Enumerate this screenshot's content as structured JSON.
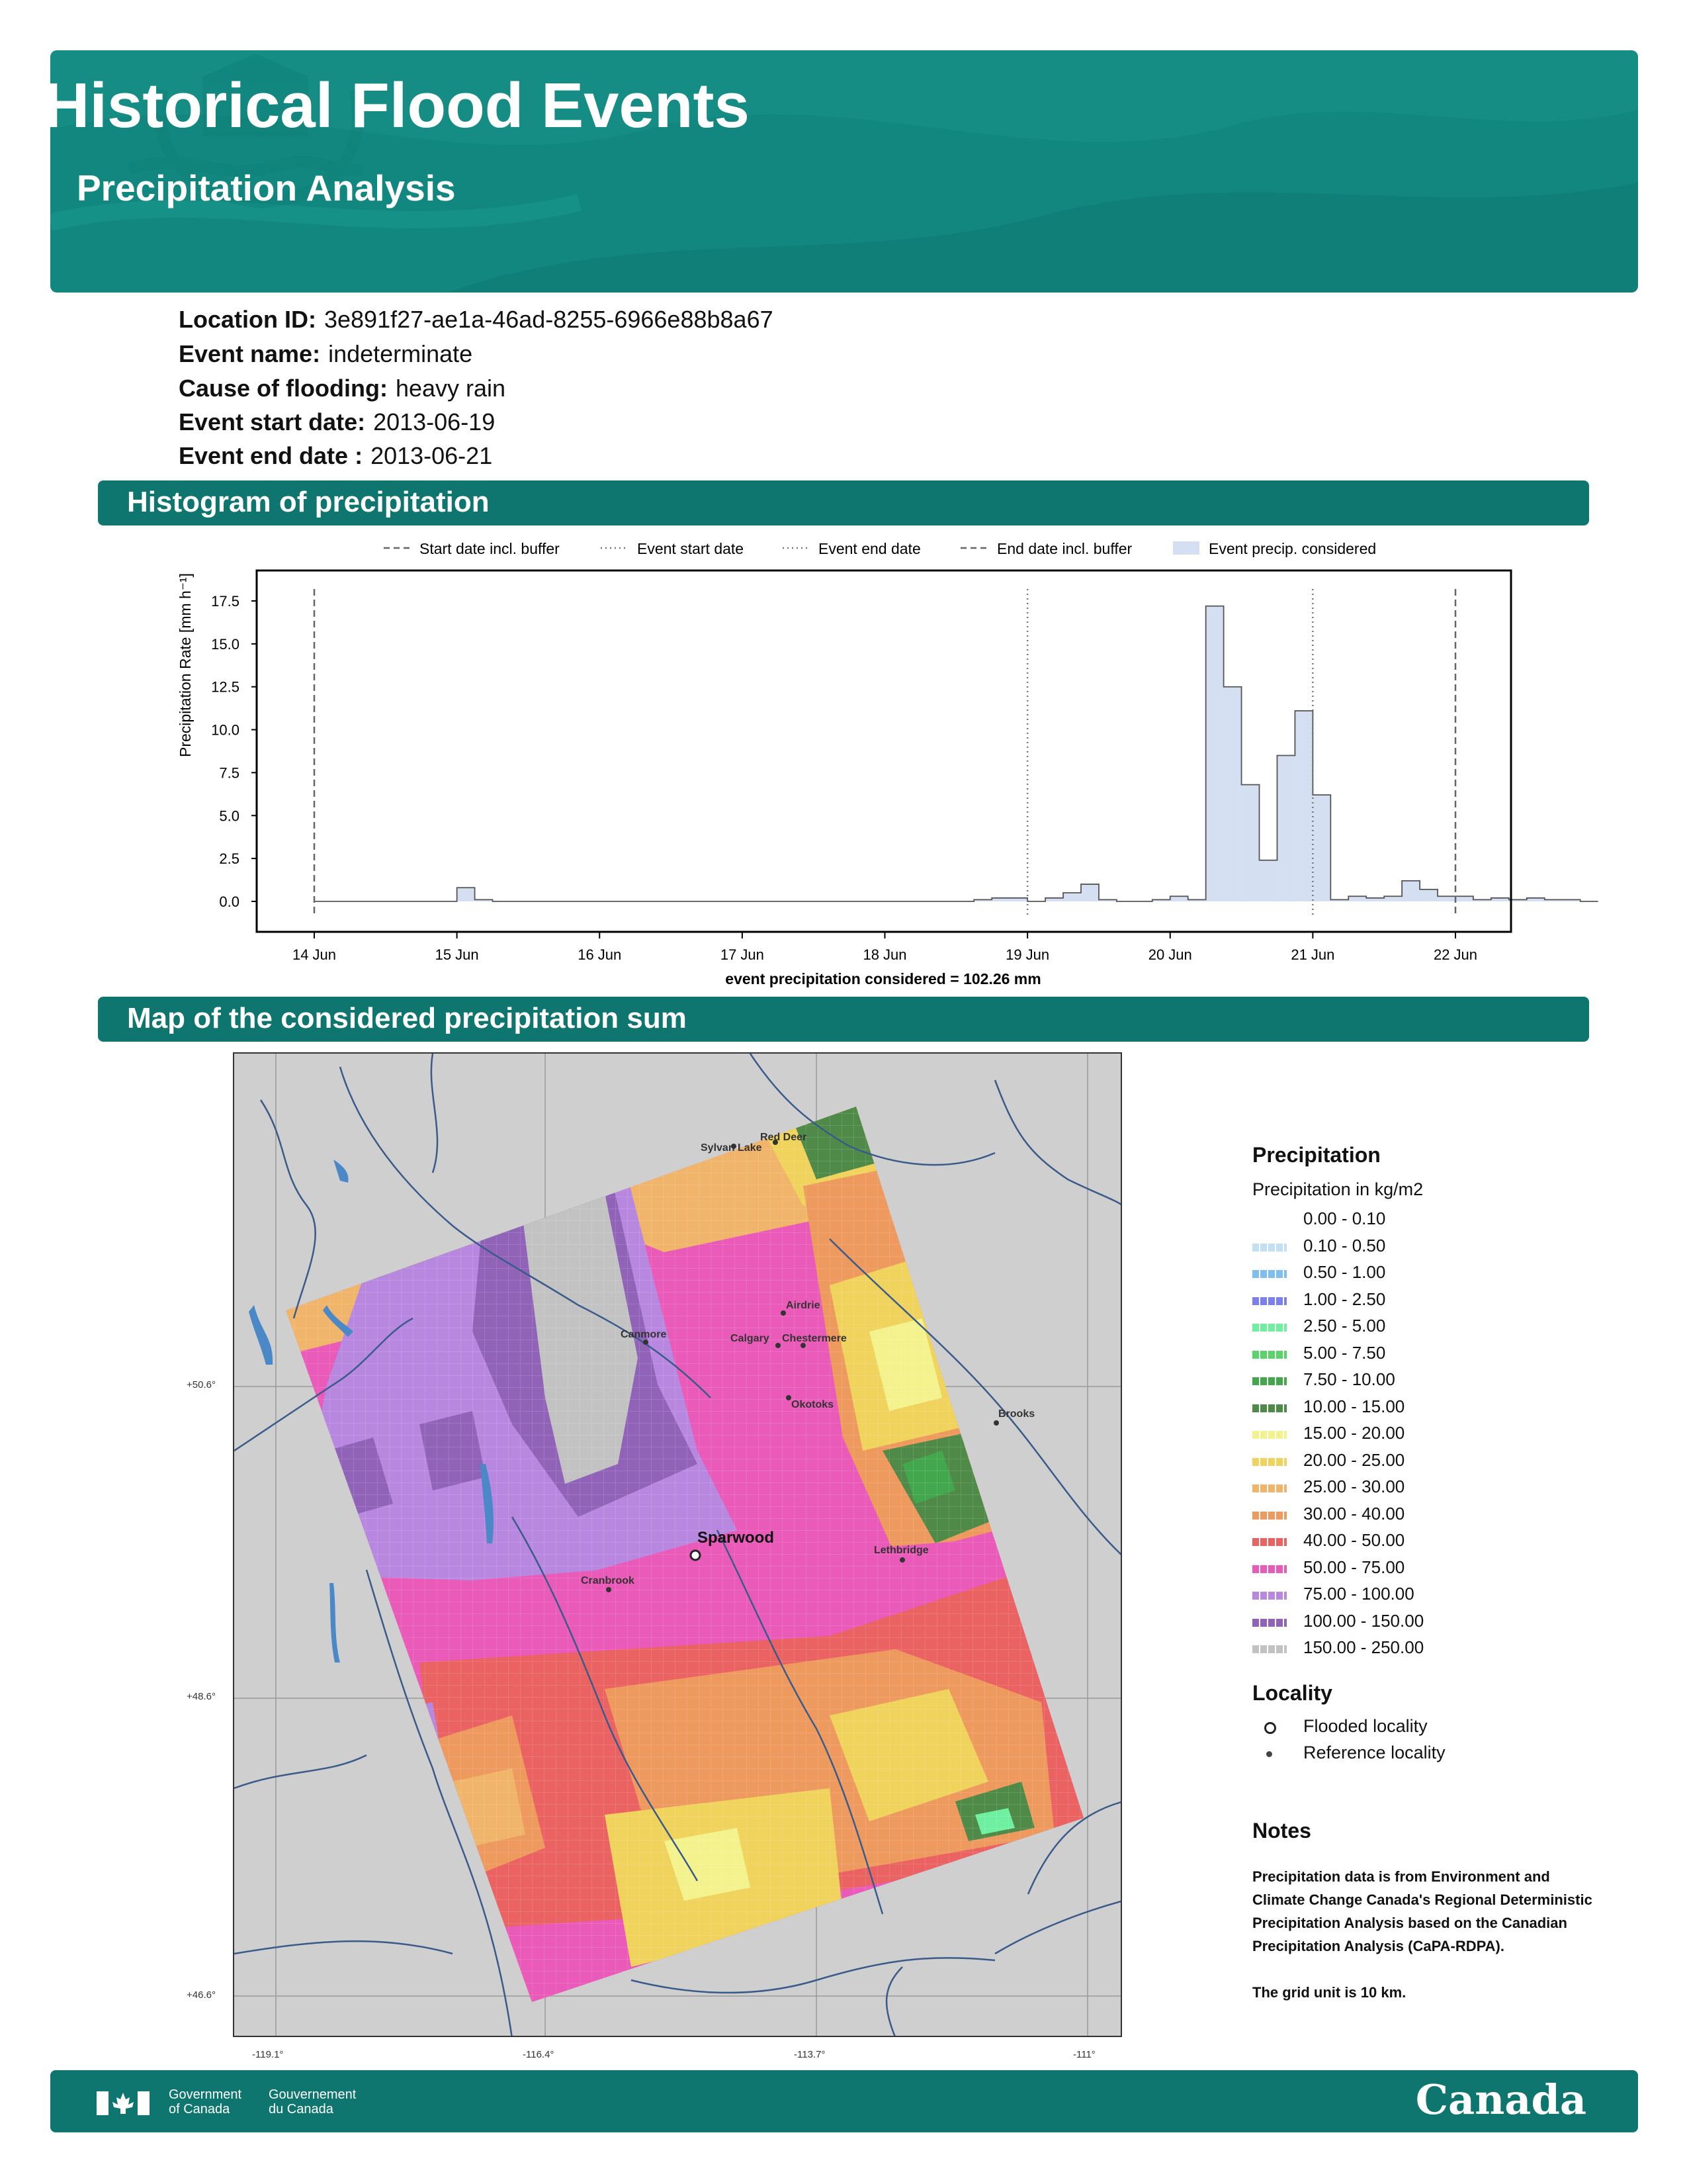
{
  "header": {
    "title": "Historical Flood Events",
    "subtitle": "Precipitation Analysis",
    "accent_color": "#12877f"
  },
  "event_info": [
    {
      "label": "Location ID:",
      "value": "3e891f27-ae1a-46ad-8255-6966e88b8a67"
    },
    {
      "label": "Event name:",
      "value": "indeterminate"
    },
    {
      "label": "Cause of flooding:",
      "value": "heavy rain"
    },
    {
      "label": "Event start date:",
      "value": "2013-06-19"
    },
    {
      "label": "Event end date :",
      "value": "2013-06-21"
    }
  ],
  "sections": {
    "histogram": "Histogram of precipitation",
    "map": "Map of the considered precipitation sum"
  },
  "chart_data": {
    "type": "area",
    "ylabel": "Precipitation Rate [mm h⁻¹]",
    "ylim": [
      0,
      18.5
    ],
    "yticks": [
      "0.0",
      "2.5",
      "5.0",
      "7.5",
      "10.0",
      "12.5",
      "15.0",
      "17.5"
    ],
    "xticks": [
      "14 Jun",
      "15 Jun",
      "16 Jun",
      "17 Jun",
      "18 Jun",
      "19 Jun",
      "20 Jun",
      "21 Jun",
      "22 Jun"
    ],
    "xlabel": "event precipitation considered = 102.26 mm",
    "legend": {
      "placement": "top",
      "entries": [
        "Start date incl. buffer",
        "Event start date",
        "Event end date",
        "End date incl. buffer",
        "Event precip. considered"
      ]
    },
    "vlines": [
      {
        "name": "Start date incl. buffer",
        "x": "2013-06-14T00:00",
        "style": "dashed"
      },
      {
        "name": "Event start date",
        "x": "2013-06-19T00:00",
        "style": "dotted"
      },
      {
        "name": "Event end date",
        "x": "2013-06-21T00:00",
        "style": "dotted"
      },
      {
        "name": "End date incl. buffer",
        "x": "2013-06-22T00:00",
        "style": "dashed"
      }
    ],
    "fill_color": "#d4dff2",
    "series": [
      {
        "name": "Event precip. considered",
        "step_hours": 3,
        "x_start": "2013-06-14T00:00",
        "values": [
          0.0,
          0.0,
          0.0,
          0.0,
          0.0,
          0.0,
          0.0,
          0.0,
          0.8,
          0.1,
          0.0,
          0.0,
          0.0,
          0.0,
          0.0,
          0.0,
          0.0,
          0.0,
          0.0,
          0.0,
          0.0,
          0.0,
          0.0,
          0.0,
          0.0,
          0.0,
          0.0,
          0.0,
          0.0,
          0.0,
          0.0,
          0.0,
          0.0,
          0.0,
          0.0,
          0.0,
          0.0,
          0.1,
          0.2,
          0.2,
          0.0,
          0.2,
          0.5,
          1.0,
          0.1,
          0.0,
          0.0,
          0.1,
          0.3,
          0.1,
          17.2,
          12.5,
          6.8,
          2.4,
          8.5,
          11.1,
          6.2,
          0.1,
          0.3,
          0.2,
          0.3,
          1.2,
          0.7,
          0.3,
          0.3,
          0.1,
          0.2,
          0.1,
          0.2,
          0.1,
          0.1,
          0.0
        ]
      }
    ]
  },
  "map": {
    "localities": [
      {
        "name": "Red Deer",
        "type": "reference"
      },
      {
        "name": "Sylvan Lake",
        "type": "reference"
      },
      {
        "name": "Airdrie",
        "type": "reference"
      },
      {
        "name": "Canmore",
        "type": "reference"
      },
      {
        "name": "Calgary",
        "type": "reference"
      },
      {
        "name": "Chestermere",
        "type": "reference"
      },
      {
        "name": "Okotoks",
        "type": "reference"
      },
      {
        "name": "Brooks",
        "type": "reference"
      },
      {
        "name": "Sparwood",
        "type": "flooded"
      },
      {
        "name": "Lethbridge",
        "type": "reference"
      },
      {
        "name": "Cranbrook",
        "type": "reference"
      }
    ],
    "lat_labels": [
      "+50.6°",
      "+48.6°",
      "+46.6°"
    ],
    "lon_labels": [
      "-119.1°",
      "-116.4°",
      "-113.7°",
      "-111°"
    ]
  },
  "legend": {
    "title": "Precipitation",
    "subtitle": "Precipitation in kg/m2",
    "items": [
      {
        "label": "0.00 - 0.10",
        "color": "#ffffff"
      },
      {
        "label": "0.10 - 0.50",
        "color": "#bfe0f5"
      },
      {
        "label": "0.50 - 1.00",
        "color": "#7fbef0"
      },
      {
        "label": "1.00 - 2.50",
        "color": "#7b7ff0"
      },
      {
        "label": "2.50 - 5.00",
        "color": "#6ff0a0"
      },
      {
        "label": "5.00 - 7.50",
        "color": "#58d468"
      },
      {
        "label": "7.50 - 10.00",
        "color": "#43a84d"
      },
      {
        "label": "10.00 - 15.00",
        "color": "#4f8a48"
      },
      {
        "label": "15.00 - 20.00",
        "color": "#f3f28c"
      },
      {
        "label": "20.00 - 25.00",
        "color": "#efd35d"
      },
      {
        "label": "25.00 - 30.00",
        "color": "#f0b56b"
      },
      {
        "label": "30.00 - 40.00",
        "color": "#ee9a5e"
      },
      {
        "label": "40.00 - 50.00",
        "color": "#ea6262"
      },
      {
        "label": "50.00 - 75.00",
        "color": "#ea5ab8"
      },
      {
        "label": "75.00 - 100.00",
        "color": "#b888e0"
      },
      {
        "label": "100.00 - 150.00",
        "color": "#9163b8"
      },
      {
        "label": "150.00 - 250.00",
        "color": "#c2c2c2"
      }
    ]
  },
  "locality_legend": {
    "title": "Locality",
    "flooded": "Flooded locality",
    "reference": "Reference locality"
  },
  "notes": {
    "title": "Notes",
    "text1": "Precipitation data is from Environment and Climate Change Canada's Regional Deterministic Precipitation Analysis based on the Canadian Precipitation Analysis (CaPA-RDPA).",
    "text2": "The grid unit is 10 km."
  },
  "footer": {
    "gov_en": "Government of Canada",
    "gov_fr": "Gouvernement du Canada",
    "wordmark": "Canada"
  }
}
